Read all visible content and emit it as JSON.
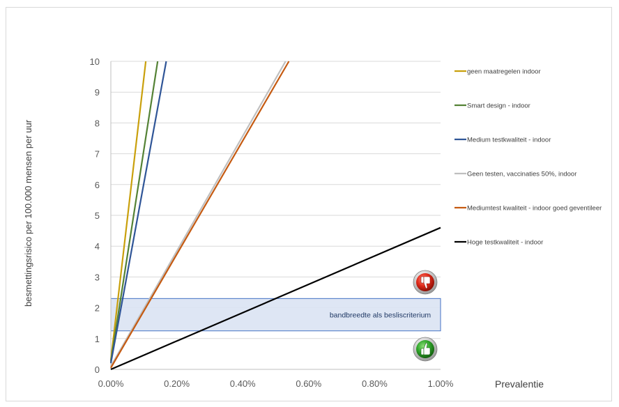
{
  "chart_data": {
    "type": "line",
    "xlabel": "Prevalentie",
    "ylabel": "besmettingsrisico per 100.000 mensen per uur",
    "xlim": [
      0,
      0.01
    ],
    "ylim": [
      0,
      10
    ],
    "x_ticks": [
      "0.00%",
      "0.20%",
      "0.40%",
      "0.60%",
      "0.80%",
      "1.00%"
    ],
    "y_ticks": [
      "0",
      "1",
      "2",
      "3",
      "4",
      "5",
      "6",
      "7",
      "8",
      "9",
      "10"
    ],
    "grid": "horizontal",
    "legend_position": "right",
    "series": [
      {
        "name": "geen maatregelen indoor",
        "color": "#c9a00c",
        "x": [
          0,
          0.00106
        ],
        "y": [
          0.3,
          10
        ]
      },
      {
        "name": "Smart design - indoor",
        "color": "#548235",
        "x": [
          0,
          0.00142
        ],
        "y": [
          0.25,
          10
        ]
      },
      {
        "name": "Medium testkwaliteit - indoor",
        "color": "#2f5597",
        "x": [
          0,
          0.00168
        ],
        "y": [
          0.2,
          10
        ]
      },
      {
        "name": "Geen testen, vaccinaties 50%, indoor",
        "color": "#bfbfbf",
        "x": [
          0,
          0.0053
        ],
        "y": [
          0.1,
          10
        ]
      },
      {
        "name": "Mediumtest kwaliteit - indoor goed geventileer",
        "color": "#c55a11",
        "x": [
          0,
          0.0054
        ],
        "y": [
          0.05,
          10
        ]
      },
      {
        "name": "Hoge testkwaliteit - indoor",
        "color": "#000000",
        "x": [
          0,
          0.01
        ],
        "y": [
          0,
          4.6
        ]
      }
    ],
    "annotations": {
      "band": {
        "label": "bandbreedte  als besliscriterium",
        "y_range": [
          1.25,
          2.3
        ]
      },
      "thumbs_down_icon": "thumbs-down-icon",
      "thumbs_up_icon": "thumbs-up-icon"
    }
  }
}
